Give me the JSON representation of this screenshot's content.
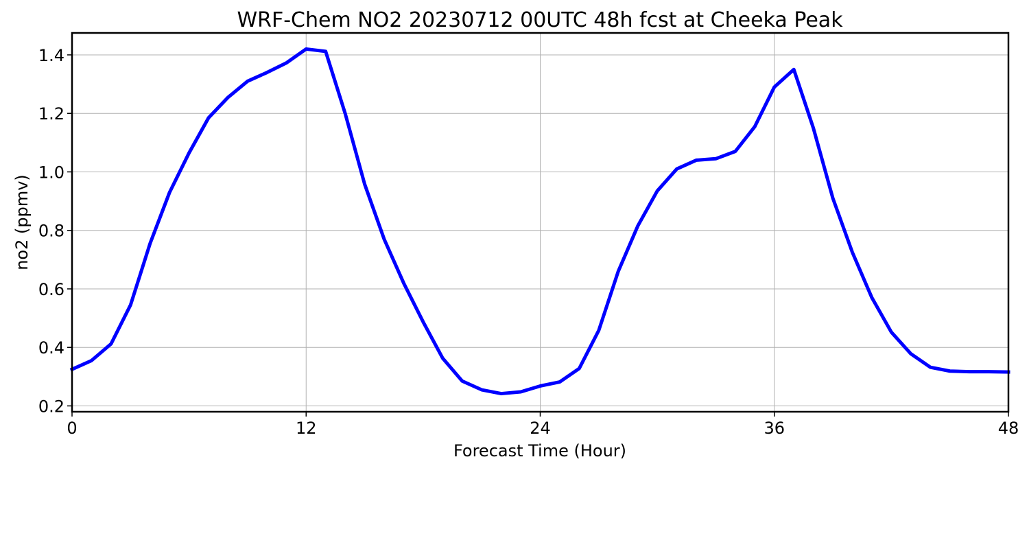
{
  "chart_data": {
    "type": "line",
    "title": "WRF-Chem NO2  20230712 00UTC 48h fcst at Cheeka Peak",
    "xlabel": "Forecast Time (Hour)",
    "ylabel": "no2  (ppmv)",
    "xlim": [
      0,
      48
    ],
    "ylim": [
      0.18,
      1.475
    ],
    "x_ticks": [
      0,
      12,
      24,
      36,
      48
    ],
    "y_ticks": [
      0.2,
      0.4,
      0.6,
      0.8,
      1.0,
      1.2,
      1.4
    ],
    "x_tick_labels": [
      "0",
      "12",
      "24",
      "36",
      "48"
    ],
    "y_tick_labels": [
      "0.2",
      "0.4",
      "0.6",
      "0.8",
      "1.0",
      "1.2",
      "1.4"
    ],
    "grid": true,
    "series": [
      {
        "color": "#0000ff",
        "x": [
          0,
          1,
          2,
          3,
          4,
          5,
          6,
          7,
          8,
          9,
          10,
          11,
          12,
          13,
          14,
          15,
          16,
          17,
          18,
          19,
          20,
          21,
          22,
          23,
          24,
          25,
          26,
          27,
          28,
          29,
          30,
          31,
          32,
          33,
          34,
          35,
          36,
          37,
          38,
          39,
          40,
          41,
          42,
          43,
          44,
          45,
          46,
          47,
          48
        ],
        "values": [
          0.325,
          0.355,
          0.412,
          0.545,
          0.755,
          0.93,
          1.065,
          1.185,
          1.255,
          1.31,
          1.34,
          1.373,
          1.42,
          1.412,
          1.2,
          0.958,
          0.77,
          0.62,
          0.487,
          0.363,
          0.285,
          0.255,
          0.242,
          0.248,
          0.268,
          0.282,
          0.328,
          0.458,
          0.66,
          0.815,
          0.935,
          1.01,
          1.04,
          1.045,
          1.07,
          1.155,
          1.29,
          1.35,
          1.15,
          0.91,
          0.725,
          0.57,
          0.452,
          0.378,
          0.332,
          0.319,
          0.317,
          0.317,
          0.316
        ]
      }
    ]
  }
}
